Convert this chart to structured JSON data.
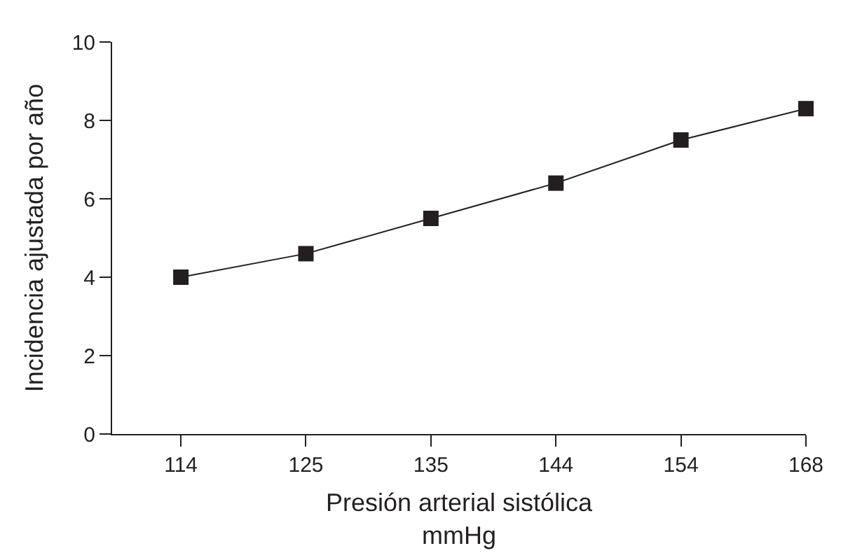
{
  "chart_data": {
    "type": "line",
    "xlabel": "Presión arterial sistólica\nmmHg",
    "ylabel": "Incidencia ajustada por año",
    "categories": [
      "114",
      "125",
      "135",
      "144",
      "154",
      "168"
    ],
    "series": [
      {
        "color": "#231f20",
        "values": [
          4.0,
          4.6,
          5.5,
          6.4,
          7.5,
          8.3
        ]
      }
    ],
    "ylim": [
      0,
      10
    ],
    "yticks": [
      0,
      2,
      4,
      6,
      8,
      10
    ],
    "marker": "square",
    "line_style": "solid"
  }
}
